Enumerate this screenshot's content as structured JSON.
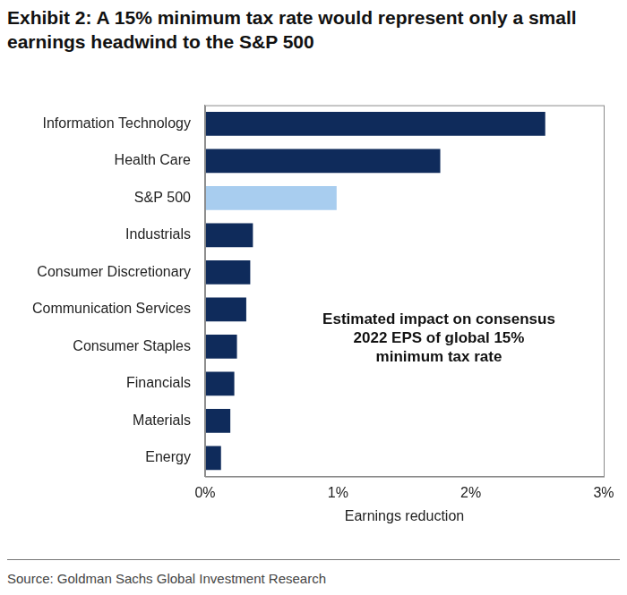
{
  "chart_data": {
    "type": "bar",
    "orientation": "horizontal",
    "title": "Exhibit 2: A 15% minimum tax rate would represent only a small earnings headwind to the S&P 500",
    "annotation": "Estimated impact on consensus 2022 EPS of global 15% minimum tax rate",
    "x_label": "Earnings reduction",
    "source": "Source: Goldman Sachs Global Investment Research",
    "categories": [
      "Information Technology",
      "Health Care",
      "S&P 500",
      "Industrials",
      "Consumer Discretionary",
      "Communication Services",
      "Consumer Staples",
      "Financials",
      "Materials",
      "Energy"
    ],
    "values": [
      2.56,
      1.77,
      0.99,
      0.36,
      0.34,
      0.31,
      0.24,
      0.22,
      0.19,
      0.12
    ],
    "colors": [
      "#0f2b5b",
      "#0f2b5b",
      "#a8cdef",
      "#0f2b5b",
      "#0f2b5b",
      "#0f2b5b",
      "#0f2b5b",
      "#0f2b5b",
      "#0f2b5b",
      "#0f2b5b"
    ],
    "xlim": [
      0,
      3
    ],
    "xticks": [
      {
        "value": 0,
        "label": "0%"
      },
      {
        "value": 1,
        "label": "1%"
      },
      {
        "value": 2,
        "label": "2%"
      },
      {
        "value": 3,
        "label": "3%"
      }
    ],
    "grid": false
  }
}
